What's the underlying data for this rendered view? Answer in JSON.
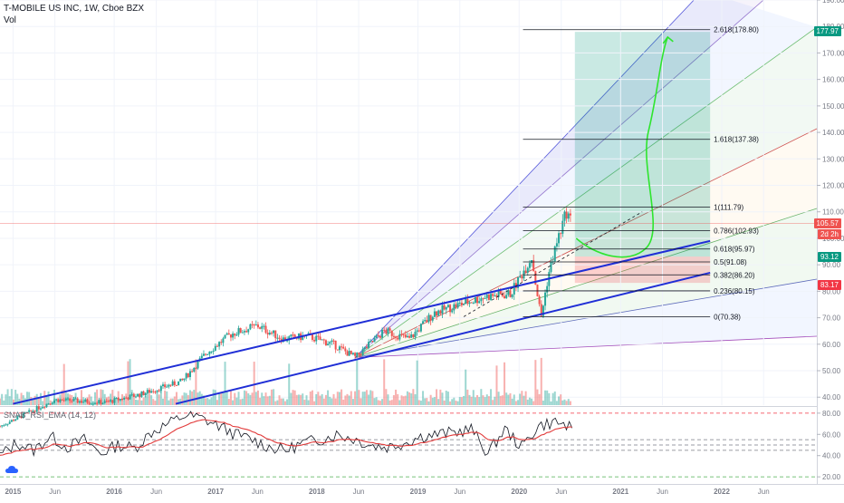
{
  "header": {
    "symbol_line": "T-MOBILE US INC, 1W, Cboe BZX",
    "volume_label": "Vol",
    "rsi_label": "SNAB_RSI_EMA (14, 12)"
  },
  "colors": {
    "up": "#26a69a",
    "down": "#ef5350",
    "price_line": "#ef5350",
    "channel": "#1f2ed6",
    "fib_target": "#089981",
    "stop": "#f23645",
    "arrow": "#2ee52e",
    "rsi": "#131722",
    "rsi_ema": "#e23b3b"
  },
  "chart_data": [
    {
      "type": "candlestick",
      "panel": "price",
      "ylim": [
        37,
        190
      ],
      "x_range": [
        "2014-11-15",
        "2022-12-10"
      ],
      "y_ticks": [
        40,
        50,
        60,
        70,
        80,
        90,
        100,
        110,
        120,
        130,
        140,
        150,
        160,
        170,
        180,
        190
      ],
      "x_ticks": [
        {
          "date": "2015-01-01",
          "label": "2015"
        },
        {
          "date": "2015-06-01",
          "label": "Jun"
        },
        {
          "date": "2016-01-01",
          "label": "2016"
        },
        {
          "date": "2016-06-01",
          "label": "Jun"
        },
        {
          "date": "2017-01-01",
          "label": "2017"
        },
        {
          "date": "2017-06-01",
          "label": "Jun"
        },
        {
          "date": "2018-01-01",
          "label": "2018"
        },
        {
          "date": "2018-06-01",
          "label": "Jun"
        },
        {
          "date": "2019-01-01",
          "label": "2019"
        },
        {
          "date": "2019-06-01",
          "label": "Jun"
        },
        {
          "date": "2020-01-01",
          "label": "2020"
        },
        {
          "date": "2020-06-01",
          "label": "Jun"
        },
        {
          "date": "2021-01-01",
          "label": "2021"
        },
        {
          "date": "2021-06-01",
          "label": "Jun"
        },
        {
          "date": "2022-01-01",
          "label": "2022"
        },
        {
          "date": "2022-06-01",
          "label": "Jun"
        }
      ],
      "price_path": [
        {
          "x": "2014-11-15",
          "y": 29
        },
        {
          "x": "2015-06-01",
          "y": 39
        },
        {
          "x": "2015-12-01",
          "y": 38
        },
        {
          "x": "2016-04-01",
          "y": 41
        },
        {
          "x": "2016-09-01",
          "y": 46
        },
        {
          "x": "2016-12-01",
          "y": 57
        },
        {
          "x": "2017-03-01",
          "y": 64
        },
        {
          "x": "2017-06-01",
          "y": 67
        },
        {
          "x": "2017-09-01",
          "y": 62
        },
        {
          "x": "2017-12-01",
          "y": 63
        },
        {
          "x": "2018-03-01",
          "y": 60
        },
        {
          "x": "2018-05-20",
          "y": 55
        },
        {
          "x": "2018-09-01",
          "y": 65
        },
        {
          "x": "2018-12-01",
          "y": 62
        },
        {
          "x": "2019-03-01",
          "y": 72
        },
        {
          "x": "2019-06-01",
          "y": 75
        },
        {
          "x": "2019-09-01",
          "y": 78
        },
        {
          "x": "2019-12-01",
          "y": 79
        },
        {
          "x": "2020-02-15",
          "y": 93
        },
        {
          "x": "2020-03-20",
          "y": 70
        },
        {
          "x": "2020-04-15",
          "y": 86
        },
        {
          "x": "2020-05-15",
          "y": 98
        },
        {
          "x": "2020-06-20",
          "y": 110
        },
        {
          "x": "2020-07-10",
          "y": 105.57
        }
      ],
      "last_price": 105.57,
      "fib_retracement": [
        {
          "ratio": "2.618",
          "value": 178.8,
          "label": "2.618(178.80)"
        },
        {
          "ratio": "1.618",
          "value": 137.38,
          "label": "1.618(137.38)"
        },
        {
          "ratio": "1",
          "value": 111.79,
          "label": "1(111.79)"
        },
        {
          "ratio": "0.786",
          "value": 102.93,
          "label": "0.786(102.93)"
        },
        {
          "ratio": "0.618",
          "value": 95.97,
          "label": "0.618(95.97)"
        },
        {
          "ratio": "0.5",
          "value": 91.08,
          "label": "0.5(91.08)"
        },
        {
          "ratio": "0.382",
          "value": 86.2,
          "label": "0.382(86.20)"
        },
        {
          "ratio": "0.236",
          "value": 80.15,
          "label": "0.236(80.15)"
        },
        {
          "ratio": "0",
          "value": 70.38,
          "label": "0(70.38)"
        }
      ],
      "position": {
        "entry": 93.12,
        "target": 177.97,
        "stop": 83.17
      },
      "price_tags": [
        {
          "value": 177.97,
          "label": "177.97",
          "color": "#089981"
        },
        {
          "value": 105.57,
          "label": "105.57",
          "color": "#ef5350"
        },
        {
          "value": 102.0,
          "label": "2d 2h",
          "color": "#ef5350"
        },
        {
          "value": 93.12,
          "label": "93.12",
          "color": "#089981"
        },
        {
          "value": 83.17,
          "label": "83.17",
          "color": "#f23645"
        }
      ]
    },
    {
      "type": "line",
      "panel": "rsi",
      "title": "SNAB_RSI_EMA (14, 12)",
      "ylim": [
        15,
        85
      ],
      "y_ticks": [
        20,
        40,
        60,
        80
      ],
      "levels": [
        80,
        55,
        50,
        45,
        20
      ],
      "series": [
        {
          "values": [
            40,
            52,
            45,
            58,
            48,
            55,
            42,
            50,
            47,
            62,
            70,
            78,
            75,
            68,
            60,
            55,
            48,
            45,
            52,
            55,
            60,
            56,
            50,
            48,
            52,
            58,
            60,
            62,
            65,
            42,
            65,
            48,
            68,
            72,
            66
          ]
        }
      ]
    }
  ]
}
